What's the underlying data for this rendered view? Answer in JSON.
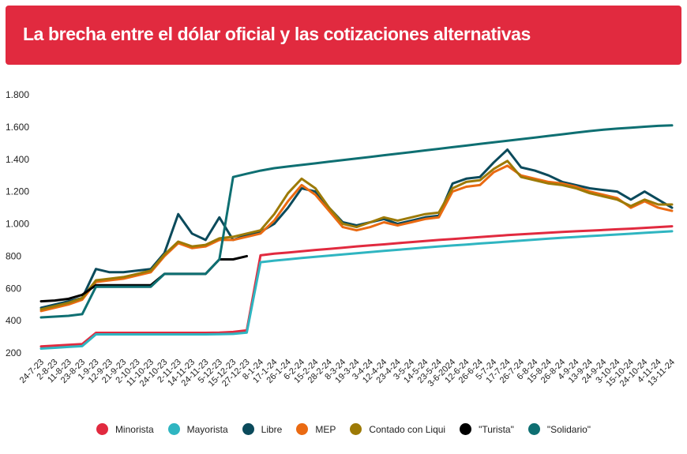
{
  "header": {
    "title": "La brecha entre el dólar oficial y las cotizaciones alternativas"
  },
  "chart_data": {
    "type": "line",
    "title": "La brecha entre el dólar oficial y las cotizaciones alternativas",
    "ylim": [
      200,
      1800
    ],
    "yticks": [
      "1.800",
      "1.600",
      "1.400",
      "1.200",
      "1.000",
      "800",
      "600",
      "400",
      "200"
    ],
    "ytick_values": [
      1800,
      1600,
      1400,
      1200,
      1000,
      800,
      600,
      400,
      200
    ],
    "x_labels": [
      "24-7-23",
      "2-8-23",
      "11-8-23",
      "23-8-23",
      "1-9-23",
      "12-9-23",
      "21-9-23",
      "2-10-23",
      "11-10-23",
      "24-10-23",
      "2-11-23",
      "14-11-23",
      "24-11-23",
      "5-12-23",
      "15-12-23",
      "27-12-23",
      "8-1-24",
      "17-1-24",
      "26-1-24",
      "6-2-24",
      "15-2-24",
      "28-2-24",
      "8-3-24",
      "19-3-24",
      "3-4-24",
      "12-4-24",
      "23-4-24",
      "3-5-24",
      "14-5-24",
      "23-5-24",
      "3-6-2024",
      "12-6-24",
      "26-6-24",
      "5-7-24",
      "17-7-24",
      "26-7-24",
      "6-8-24",
      "15-8-24",
      "26-8-24",
      "4-9-24",
      "13-9-24",
      "24-9-24",
      "3-10-24",
      "15-10-24",
      "24-10-24",
      "4-11-24",
      "13-11-24"
    ],
    "grid": false,
    "legend_position": "bottom",
    "series": [
      {
        "name": "Minorista",
        "color": "#e12a3f",
        "values": [
          240,
          245,
          250,
          255,
          325,
          325,
          325,
          325,
          325,
          325,
          325,
          325,
          325,
          326,
          330,
          340,
          805,
          815,
          822,
          830,
          838,
          845,
          852,
          860,
          867,
          873,
          880,
          887,
          894,
          900,
          906,
          912,
          918,
          924,
          930,
          935,
          940,
          945,
          950,
          954,
          958,
          962,
          966,
          970,
          975,
          980,
          985
        ]
      },
      {
        "name": "Mayorista",
        "color": "#2fb5c1",
        "values": [
          227,
          232,
          237,
          242,
          315,
          315,
          315,
          315,
          315,
          315,
          315,
          315,
          315,
          316,
          318,
          326,
          762,
          772,
          780,
          788,
          796,
          803,
          810,
          818,
          825,
          832,
          839,
          846,
          853,
          860,
          866,
          872,
          878,
          884,
          890,
          896,
          902,
          908,
          914,
          919,
          924,
          929,
          934,
          939,
          944,
          949,
          954
        ]
      },
      {
        "name": "Libre",
        "color": "#0b4a5b",
        "values": [
          480,
          500,
          520,
          540,
          720,
          700,
          700,
          710,
          720,
          820,
          1060,
          940,
          900,
          1040,
          900,
          930,
          950,
          1000,
          1100,
          1220,
          1200,
          1100,
          1010,
          990,
          1010,
          1030,
          1000,
          1020,
          1040,
          1050,
          1250,
          1280,
          1290,
          1380,
          1460,
          1350,
          1330,
          1300,
          1260,
          1240,
          1220,
          1210,
          1200,
          1150,
          1200,
          1150,
          1100
        ]
      },
      {
        "name": "MEP",
        "color": "#ea6a12",
        "values": [
          460,
          480,
          500,
          530,
          640,
          650,
          660,
          680,
          700,
          800,
          880,
          850,
          860,
          900,
          900,
          920,
          940,
          1020,
          1140,
          1240,
          1180,
          1080,
          980,
          960,
          980,
          1010,
          990,
          1010,
          1030,
          1040,
          1200,
          1230,
          1240,
          1320,
          1360,
          1300,
          1280,
          1260,
          1250,
          1230,
          1200,
          1180,
          1160,
          1100,
          1140,
          1100,
          1080
        ]
      },
      {
        "name": "Contado con Liqui",
        "color": "#9d7a06",
        "values": [
          470,
          490,
          510,
          540,
          650,
          660,
          670,
          690,
          710,
          810,
          890,
          860,
          870,
          910,
          920,
          940,
          960,
          1060,
          1190,
          1280,
          1220,
          1100,
          1000,
          980,
          1010,
          1040,
          1020,
          1040,
          1060,
          1070,
          1220,
          1260,
          1270,
          1340,
          1390,
          1290,
          1270,
          1250,
          1240,
          1220,
          1190,
          1170,
          1150,
          1110,
          1150,
          1120,
          1120
        ]
      },
      {
        "name": "\"Turista\"",
        "color": "#000000",
        "values": [
          520,
          525,
          535,
          560,
          620,
          620,
          620,
          620,
          620,
          690,
          690,
          690,
          690,
          780,
          780,
          800
        ]
      },
      {
        "name": "\"Solidario\"",
        "color": "#0e6f72",
        "values": [
          420,
          425,
          430,
          440,
          610,
          610,
          610,
          610,
          610,
          690,
          690,
          690,
          690,
          780,
          1290,
          1310,
          1330,
          1345,
          1355,
          1365,
          1375,
          1385,
          1395,
          1405,
          1415,
          1425,
          1435,
          1445,
          1455,
          1465,
          1475,
          1485,
          1495,
          1505,
          1515,
          1525,
          1535,
          1545,
          1555,
          1565,
          1575,
          1583,
          1590,
          1596,
          1602,
          1607,
          1610
        ]
      }
    ]
  }
}
